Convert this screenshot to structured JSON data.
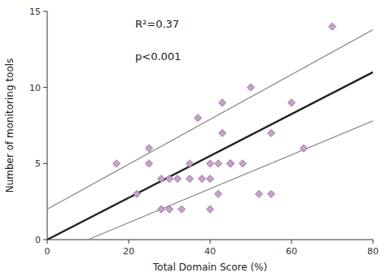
{
  "chart_data": {
    "type": "scatter",
    "x_label": "Total Domain Score (%)",
    "y_label": "Number of monitoring tools",
    "annotations": [
      "R²=0.37",
      "p<0.001"
    ],
    "xlim": [
      0,
      80
    ],
    "ylim": [
      0,
      15
    ],
    "xticks": [
      0,
      20,
      40,
      60,
      80
    ],
    "yticks": [
      0,
      5,
      10,
      15
    ],
    "grid": false,
    "series": [
      {
        "type": "line",
        "color": "#888888",
        "x": [
          0,
          80
        ],
        "values": [
          2.0,
          13.8
        ]
      },
      {
        "type": "line",
        "color": "#888888",
        "x": [
          10,
          80
        ],
        "values": [
          0.0,
          7.8
        ]
      },
      {
        "type": "line",
        "color": "#222222",
        "x": [
          0,
          80
        ],
        "values": [
          0.0,
          11.0
        ]
      },
      {
        "type": "scatter",
        "marker": "diamond",
        "color": "#c8a0c8",
        "x": [
          17,
          22,
          25,
          25,
          28,
          28,
          30,
          30,
          32,
          33,
          35,
          35,
          37,
          38,
          40,
          40,
          40,
          42,
          42,
          43,
          43,
          45,
          45,
          48,
          50,
          52,
          55,
          55,
          60,
          63,
          70
        ],
        "values": [
          5,
          3,
          5,
          6,
          2,
          4,
          2,
          4,
          4,
          2,
          4,
          5,
          8,
          4,
          5,
          4,
          2,
          3,
          5,
          9,
          7,
          5,
          5,
          5,
          10,
          3,
          7,
          3,
          9,
          6,
          14
        ]
      }
    ]
  }
}
